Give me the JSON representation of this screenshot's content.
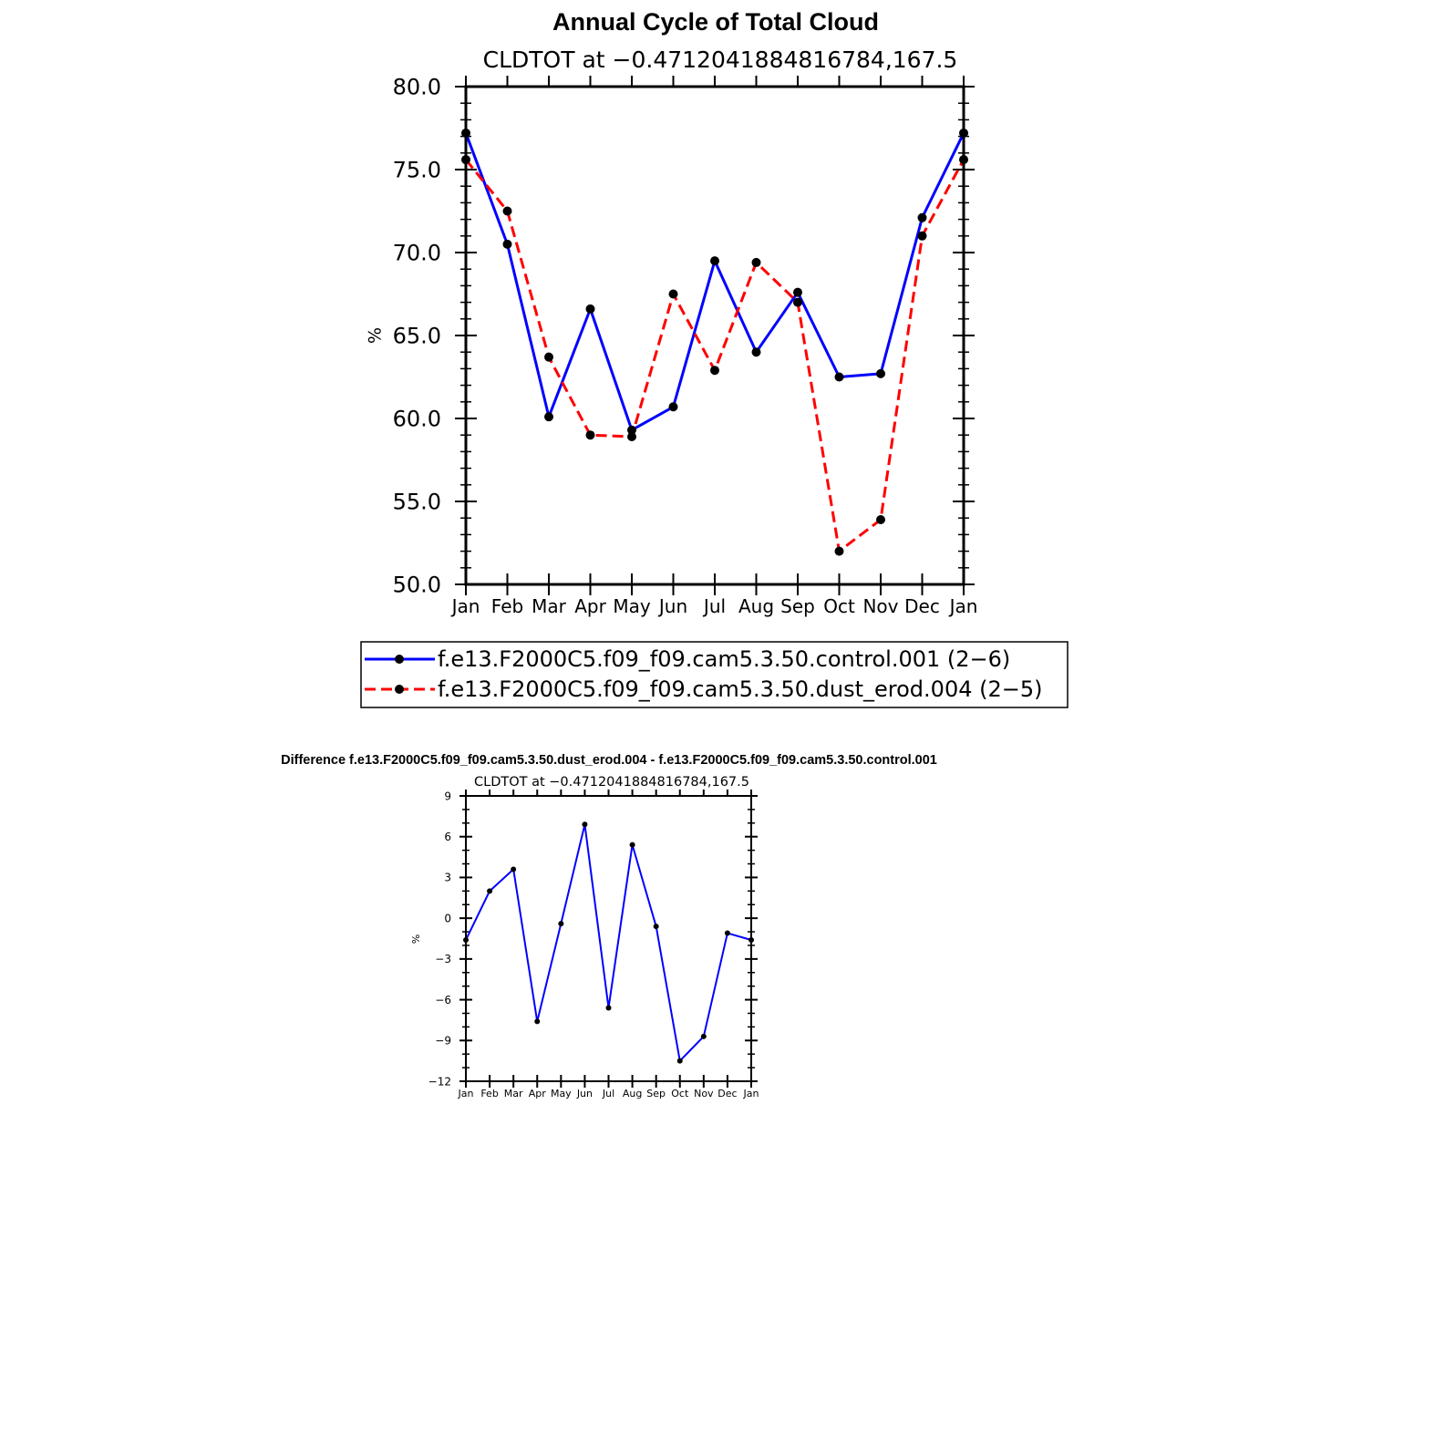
{
  "colors": {
    "control": "#0000ff",
    "dust": "#ff0000",
    "diff": "#0000ff",
    "marker": "#000000"
  },
  "top": {
    "title": "Annual Cycle of Total Cloud",
    "subtitle": "CLDTOT at −0.4712041884816784,167.5",
    "ylabel": "%",
    "ytick_labels": [
      "50.0",
      "55.0",
      "60.0",
      "65.0",
      "70.0",
      "75.0",
      "80.0"
    ],
    "legend": {
      "control": "f.e13.F2000C5.f09_f09.cam5.3.50.control.001 (2−6)",
      "dust": "f.e13.F2000C5.f09_f09.cam5.3.50.dust_erod.004 (2−5)"
    }
  },
  "bottom": {
    "title": "Difference f.e13.F2000C5.f09_f09.cam5.3.50.dust_erod.004 - f.e13.F2000C5.f09_f09.cam5.3.50.control.001",
    "subtitle": "CLDTOT at −0.4712041884816784,167.5",
    "ylabel": "%",
    "ytick_labels": [
      "−12",
      "−9",
      "−6",
      "−3",
      "0",
      "3",
      "6",
      "9"
    ]
  },
  "chart_data": [
    {
      "type": "line",
      "title": "Annual Cycle of Total Cloud",
      "subtitle": "CLDTOT at −0.4712041884816784,167.5",
      "ylabel": "%",
      "ylim": [
        50,
        80
      ],
      "categories": [
        "Jan",
        "Feb",
        "Mar",
        "Apr",
        "May",
        "Jun",
        "Jul",
        "Aug",
        "Sep",
        "Oct",
        "Nov",
        "Dec",
        "Jan"
      ],
      "series": [
        {
          "name": "f.e13.F2000C5.f09_f09.cam5.3.50.control.001 (2−6)",
          "style": "solid",
          "values": [
            77.2,
            70.5,
            60.1,
            66.6,
            59.3,
            60.7,
            69.5,
            64.0,
            67.6,
            62.5,
            62.7,
            72.1,
            77.2
          ]
        },
        {
          "name": "f.e13.F2000C5.f09_f09.cam5.3.50.dust_erod.004 (2−5)",
          "style": "dashed",
          "values": [
            75.6,
            72.5,
            63.7,
            59.0,
            58.9,
            67.5,
            62.9,
            69.4,
            67.0,
            52.0,
            53.9,
            71.0,
            75.6
          ]
        }
      ],
      "legend": "below"
    },
    {
      "type": "line",
      "title": "Difference f.e13.F2000C5.f09_f09.cam5.3.50.dust_erod.004 - f.e13.F2000C5.f09_f09.cam5.3.50.control.001",
      "subtitle": "CLDTOT at −0.4712041884816784,167.5",
      "ylabel": "%",
      "ylim": [
        -12,
        9
      ],
      "categories": [
        "Jan",
        "Feb",
        "Mar",
        "Apr",
        "May",
        "Jun",
        "Jul",
        "Aug",
        "Sep",
        "Oct",
        "Nov",
        "Dec",
        "Jan"
      ],
      "series": [
        {
          "values": [
            -1.6,
            2.0,
            3.6,
            -7.6,
            -0.4,
            6.9,
            -6.6,
            5.4,
            -0.6,
            -10.5,
            -8.7,
            -1.1,
            -1.6
          ]
        }
      ]
    }
  ]
}
